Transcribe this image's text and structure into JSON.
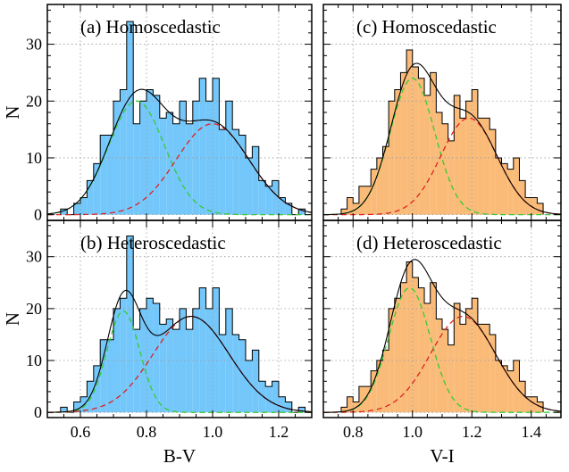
{
  "chart_data": {
    "type": "histogram",
    "grid": true,
    "panels": [
      {
        "id": "a",
        "label": "(a) Homoscedastic",
        "column": "B-V",
        "row": 0,
        "xlim": [
          0.5,
          1.3
        ],
        "ylim": [
          -1,
          37
        ],
        "bins": {
          "edges": [
            0.54,
            0.56,
            0.58,
            0.6,
            0.62,
            0.64,
            0.66,
            0.68,
            0.7,
            0.72,
            0.74,
            0.76,
            0.78,
            0.8,
            0.82,
            0.84,
            0.86,
            0.88,
            0.9,
            0.92,
            0.94,
            0.96,
            0.98,
            1.0,
            1.02,
            1.04,
            1.06,
            1.08,
            1.1,
            1.12,
            1.14,
            1.16,
            1.18,
            1.2,
            1.22,
            1.24,
            1.26,
            1.28
          ],
          "counts": [
            1,
            0,
            2,
            3,
            6,
            9,
            14,
            14,
            20,
            22,
            34,
            16,
            20,
            22,
            21,
            17,
            18,
            16,
            20,
            16,
            20,
            24,
            20,
            24,
            15,
            20,
            15,
            14,
            10,
            12,
            6,
            5,
            6,
            3,
            2,
            0,
            1
          ]
        },
        "components": [
          {
            "name": "",
            "color": "#33cc33",
            "mu": 0.77,
            "sigma": 0.085,
            "amp": 20
          },
          {
            "name": "",
            "color": "#dd2222",
            "mu": 1.0,
            "sigma": 0.11,
            "amp": 16
          }
        ]
      },
      {
        "id": "b",
        "label": "(b) Heteroscedastic",
        "column": "B-V",
        "row": 1,
        "xlim": [
          0.5,
          1.3
        ],
        "ylim": [
          -1,
          37
        ],
        "bins": {
          "edges": [
            0.54,
            0.56,
            0.58,
            0.6,
            0.62,
            0.64,
            0.66,
            0.68,
            0.7,
            0.72,
            0.74,
            0.76,
            0.78,
            0.8,
            0.82,
            0.84,
            0.86,
            0.88,
            0.9,
            0.92,
            0.94,
            0.96,
            0.98,
            1.0,
            1.02,
            1.04,
            1.06,
            1.08,
            1.1,
            1.12,
            1.14,
            1.16,
            1.18,
            1.2,
            1.22,
            1.24,
            1.26,
            1.28
          ],
          "counts": [
            1,
            0,
            2,
            3,
            6,
            9,
            14,
            14,
            20,
            22,
            34,
            16,
            20,
            22,
            21,
            17,
            18,
            16,
            20,
            16,
            20,
            24,
            20,
            24,
            15,
            20,
            15,
            14,
            10,
            12,
            6,
            5,
            6,
            3,
            2,
            0,
            1
          ]
        },
        "components": [
          {
            "name": "",
            "color": "#33cc33",
            "mu": 0.73,
            "sigma": 0.05,
            "amp": 19.5
          },
          {
            "name": "",
            "color": "#dd2222",
            "mu": 0.935,
            "sigma": 0.115,
            "amp": 18.5
          }
        ]
      },
      {
        "id": "c",
        "label": "(c) Homoscedastic",
        "column": "V-I",
        "row": 0,
        "xlim": [
          0.7,
          1.5
        ],
        "ylim": [
          -1,
          37
        ],
        "bins": {
          "edges": [
            0.76,
            0.78,
            0.8,
            0.82,
            0.84,
            0.86,
            0.88,
            0.9,
            0.92,
            0.94,
            0.96,
            0.98,
            1.0,
            1.02,
            1.04,
            1.06,
            1.08,
            1.1,
            1.12,
            1.14,
            1.16,
            1.18,
            1.2,
            1.22,
            1.24,
            1.26,
            1.28,
            1.3,
            1.32,
            1.34,
            1.36,
            1.38,
            1.4,
            1.42,
            1.44
          ],
          "counts": [
            1,
            3,
            2,
            5,
            5,
            8,
            10,
            12,
            20,
            22,
            25,
            29,
            26,
            24,
            21,
            25,
            18,
            16,
            13,
            21,
            17,
            20,
            22,
            17,
            17,
            15,
            10,
            9,
            8,
            10,
            6,
            3,
            3,
            2
          ]
        },
        "components": [
          {
            "name": "",
            "color": "#33cc33",
            "mu": 1.0,
            "sigma": 0.075,
            "amp": 24
          },
          {
            "name": "",
            "color": "#dd2222",
            "mu": 1.19,
            "sigma": 0.095,
            "amp": 17
          }
        ]
      },
      {
        "id": "d",
        "label": "(d) Heteroscedastic",
        "column": "V-I",
        "row": 1,
        "xlim": [
          0.7,
          1.5
        ],
        "ylim": [
          -1,
          37
        ],
        "bins": {
          "edges": [
            0.76,
            0.78,
            0.8,
            0.82,
            0.84,
            0.86,
            0.88,
            0.9,
            0.92,
            0.94,
            0.96,
            0.98,
            1.0,
            1.02,
            1.04,
            1.06,
            1.08,
            1.1,
            1.12,
            1.14,
            1.16,
            1.18,
            1.2,
            1.22,
            1.24,
            1.26,
            1.28,
            1.3,
            1.32,
            1.34,
            1.36,
            1.38,
            1.4,
            1.42,
            1.44
          ],
          "counts": [
            1,
            3,
            2,
            5,
            5,
            8,
            10,
            12,
            20,
            22,
            25,
            29,
            26,
            24,
            21,
            25,
            18,
            16,
            13,
            21,
            17,
            20,
            22,
            17,
            17,
            15,
            10,
            9,
            8,
            10,
            6,
            3,
            3,
            2
          ]
        },
        "components": [
          {
            "name": "",
            "color": "#33cc33",
            "mu": 0.99,
            "sigma": 0.07,
            "amp": 24
          },
          {
            "name": "",
            "color": "#dd2222",
            "mu": 1.17,
            "sigma": 0.11,
            "amp": 18.5
          }
        ]
      }
    ],
    "columns": {
      "B-V": {
        "xlabel": "B-V",
        "ticks": [
          0.6,
          0.8,
          1.0,
          1.2
        ],
        "tick_labels": [
          "0.6",
          "0.8",
          "1.0",
          "1.2"
        ],
        "fill": "#74c7fa"
      },
      "V-I": {
        "xlabel": "V-I",
        "ticks": [
          0.8,
          1.0,
          1.2,
          1.4
        ],
        "tick_labels": [
          "0.8",
          "1.0",
          "1.2",
          "1.4"
        ],
        "fill": "#fabb78"
      }
    },
    "ylabel": "N",
    "yticks": [
      0,
      10,
      20,
      30
    ],
    "ytick_labels": [
      "0",
      "10",
      "20",
      "30"
    ]
  }
}
